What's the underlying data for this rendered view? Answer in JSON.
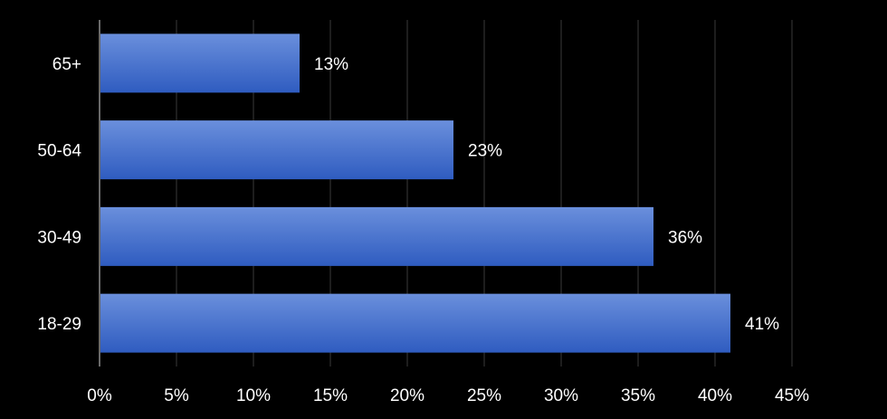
{
  "chart_data": {
    "type": "bar",
    "orientation": "horizontal",
    "title": "",
    "xlabel": "",
    "ylabel": "",
    "categories": [
      "65+",
      "50-64",
      "30-49",
      "18-29"
    ],
    "values": [
      13,
      23,
      36,
      41
    ],
    "data_labels": [
      "13%",
      "23%",
      "36%",
      "41%"
    ],
    "xlim": [
      0,
      45
    ],
    "x_ticks": [
      0,
      5,
      10,
      15,
      20,
      25,
      30,
      35,
      40,
      45
    ],
    "x_tick_labels": [
      "0%",
      "5%",
      "10%",
      "15%",
      "20%",
      "25%",
      "30%",
      "35%",
      "40%",
      "45%"
    ],
    "grid": true,
    "legend": "none",
    "colors": {
      "background": "#000000",
      "bar_top": "#6a8fdc",
      "bar_bottom": "#2f5cc0",
      "grid": "#3a3a3a",
      "axis": "#8c8c8c",
      "text": "#ffffff"
    }
  }
}
